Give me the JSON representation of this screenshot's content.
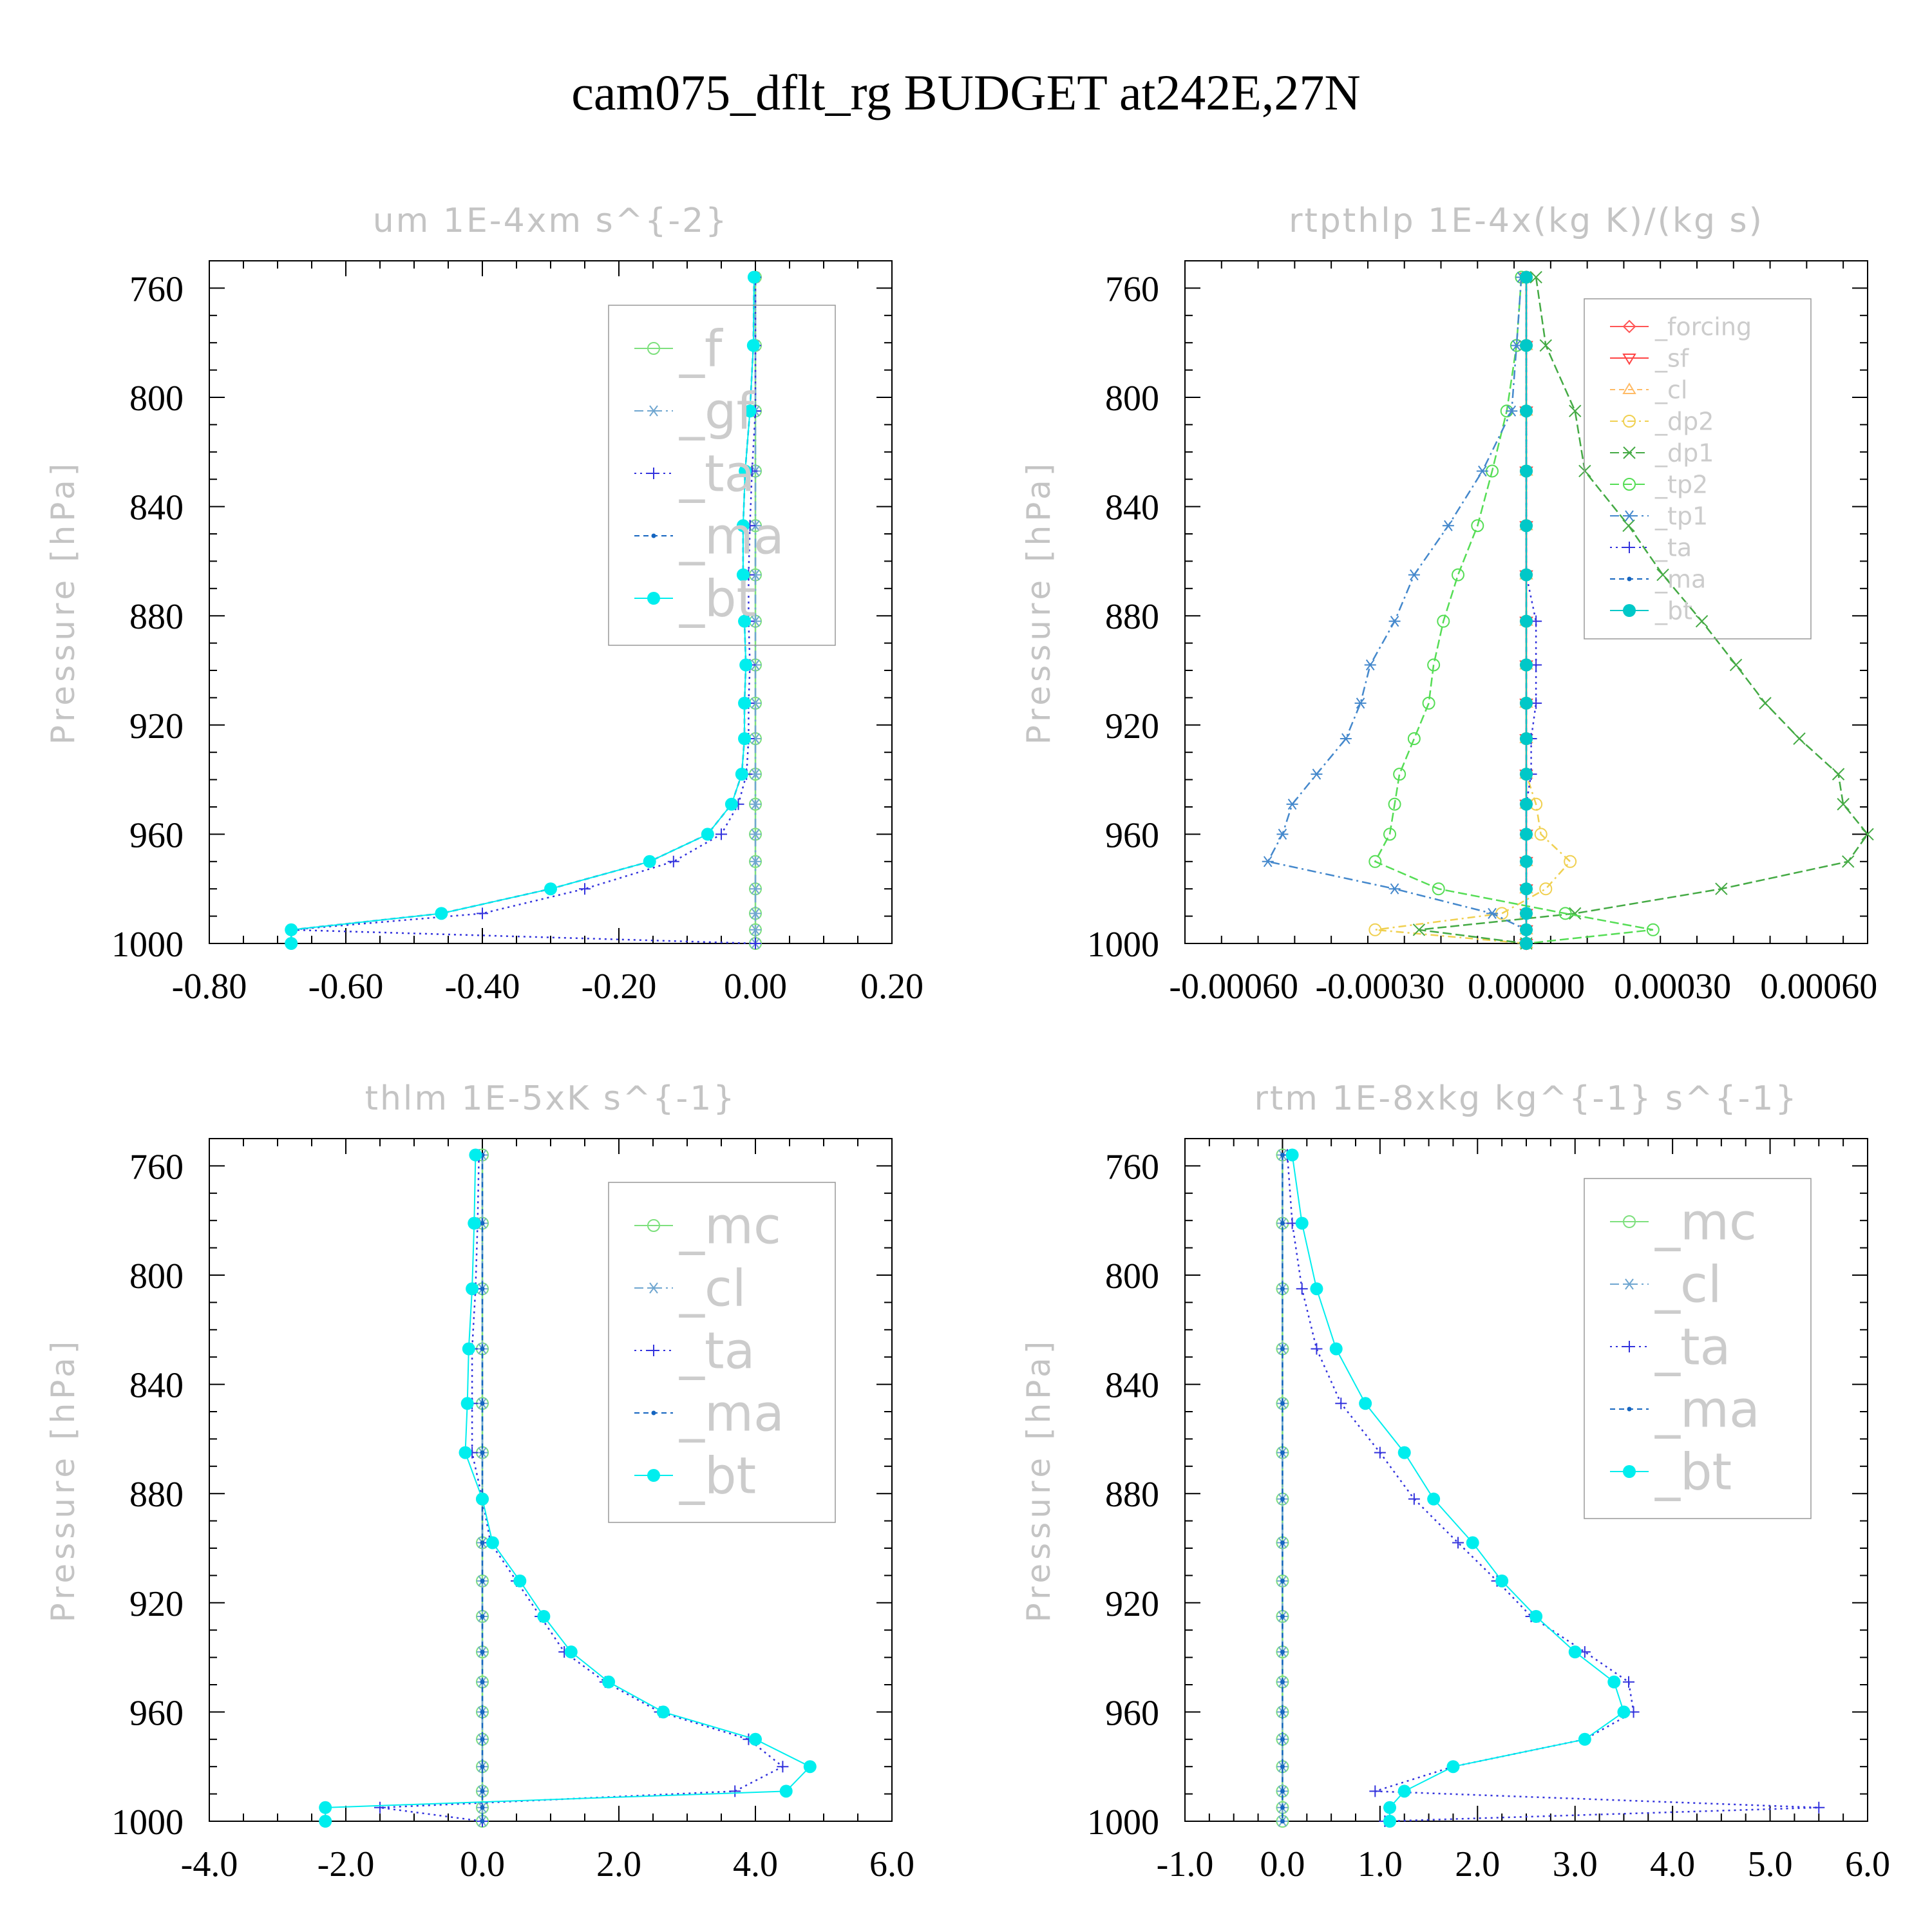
{
  "figure_title": "cam075_dflt_rg  BUDGET at242E,27N",
  "chart_data": [
    {
      "type": "line",
      "title": "um  1E-4xm s^{-2}",
      "ylabel": "Pressure [hPa]",
      "xlabel": "",
      "ylim": [
        1000,
        750
      ],
      "y_ticks": [
        760,
        800,
        840,
        880,
        920,
        960,
        1000
      ],
      "xlim": [
        -0.8,
        0.2
      ],
      "x_ticks": [
        -0.8,
        -0.6,
        -0.4,
        -0.2,
        0.0,
        0.2
      ],
      "x_tick_labels": [
        "-0.80",
        "-0.60",
        "-0.40",
        "-0.20",
        "0.00",
        "0.20"
      ],
      "zero_line": false,
      "legend_placement": "top-right",
      "legend_font": "large",
      "pressure": [
        756,
        781,
        805,
        827,
        847,
        865,
        882,
        898,
        912,
        925,
        938,
        949,
        960,
        970,
        980,
        989,
        995,
        1000
      ],
      "series": [
        {
          "name": "_f",
          "color": "#7ee07e",
          "marker": "circle",
          "dash": "",
          "values": [
            0.0,
            0.0,
            0.0,
            0.0,
            0.0,
            0.0,
            0.0,
            0.0,
            0.0,
            0.0,
            0.0,
            0.0,
            0.0,
            0.0,
            0.0,
            0.0,
            0.0,
            0.0
          ]
        },
        {
          "name": "_gf",
          "color": "#6fa6d0",
          "marker": "asterisk",
          "dash": "14 6 3 6",
          "values": [
            0.0,
            0.0,
            0.0,
            0.0,
            0.0,
            0.0,
            0.0,
            0.0,
            0.0,
            0.0,
            0.0,
            0.0,
            0.0,
            0.0,
            0.0,
            0.0,
            0.0,
            0.0
          ]
        },
        {
          "name": "_ta",
          "color": "#3333dd",
          "marker": "plus",
          "dash": "3 6",
          "values": [
            0.0,
            0.0,
            0.0,
            -0.005,
            -0.008,
            -0.01,
            -0.01,
            -0.008,
            -0.01,
            -0.01,
            -0.013,
            -0.025,
            -0.05,
            -0.12,
            -0.25,
            -0.4,
            -0.68,
            0.0
          ]
        },
        {
          "name": "_ma",
          "color": "#1565c0",
          "marker": "dot",
          "dash": "8 6",
          "values": [
            -0.002,
            -0.003,
            -0.008,
            -0.015,
            -0.018,
            -0.018,
            -0.016,
            -0.014,
            -0.016,
            -0.016,
            -0.02,
            -0.035,
            -0.07,
            -0.155,
            -0.3,
            -0.46,
            -0.68,
            -0.68
          ]
        },
        {
          "name": "_bt",
          "color": "#00eeee",
          "marker": "bigdot",
          "dash": "",
          "values": [
            -0.002,
            -0.003,
            -0.008,
            -0.015,
            -0.018,
            -0.018,
            -0.016,
            -0.014,
            -0.016,
            -0.016,
            -0.02,
            -0.035,
            -0.07,
            -0.155,
            -0.3,
            -0.46,
            -0.68,
            -0.68
          ]
        }
      ]
    },
    {
      "type": "line",
      "title": "rtpthlp  1E-4x(kg K)/(kg s)",
      "ylabel": "Pressure [hPa]",
      "xlabel": "",
      "ylim": [
        1000,
        750
      ],
      "y_ticks": [
        760,
        800,
        840,
        880,
        920,
        960,
        1000
      ],
      "xlim": [
        -0.0007,
        0.0007
      ],
      "x_ticks": [
        -0.0006,
        -0.0003,
        0.0,
        0.0003,
        0.0006
      ],
      "x_tick_labels": [
        "-0.00060",
        "-0.00030",
        "0.00000",
        "0.00030",
        "0.00060"
      ],
      "zero_line": false,
      "legend_placement": "top-right",
      "legend_font": "small",
      "pressure": [
        756,
        781,
        805,
        827,
        847,
        865,
        882,
        898,
        912,
        925,
        938,
        949,
        960,
        970,
        980,
        989,
        995,
        1000
      ],
      "series": [
        {
          "name": "_forcing",
          "color": "#ff5555",
          "marker": "diamond",
          "dash": "",
          "values": [
            0,
            0,
            0,
            0,
            0,
            0,
            0,
            0,
            0,
            0,
            0,
            0,
            0,
            0,
            0,
            0,
            0,
            0
          ]
        },
        {
          "name": "_sf",
          "color": "#ff4444",
          "marker": "tri-down",
          "dash": "",
          "values": [
            0,
            0,
            0,
            0,
            0,
            0,
            0,
            0,
            0,
            0,
            0,
            0,
            0,
            0,
            0,
            0,
            0,
            0
          ]
        },
        {
          "name": "_cl",
          "color": "#ffbb66",
          "marker": "tri-up",
          "dash": "8 6",
          "values": [
            0,
            0,
            0,
            0,
            0,
            0,
            0,
            0,
            0,
            0,
            0,
            0,
            0,
            0,
            0,
            0,
            0,
            0
          ]
        },
        {
          "name": "_dp2",
          "color": "#f0d050",
          "marker": "circle",
          "dash": "12 6 3 6",
          "values": [
            0,
            0,
            0,
            0,
            0,
            0,
            0,
            0,
            0,
            0,
            0,
            2e-05,
            3e-05,
            9e-05,
            4e-05,
            -5e-05,
            -0.00031,
            0
          ]
        },
        {
          "name": "_dp1",
          "color": "#44aa44",
          "marker": "x",
          "dash": "14 6",
          "values": [
            2e-05,
            4e-05,
            0.0001,
            0.00012,
            0.00021,
            0.00028,
            0.00036,
            0.00043,
            0.00049,
            0.00056,
            0.00064,
            0.00065,
            0.0007,
            0.00066,
            0.0004,
            0.0001,
            -0.00022,
            0
          ]
        },
        {
          "name": "_tp2",
          "color": "#55dd55",
          "marker": "circle",
          "dash": "14 6",
          "values": [
            -1e-05,
            -2e-05,
            -4e-05,
            -7e-05,
            -0.0001,
            -0.00014,
            -0.00017,
            -0.00019,
            -0.0002,
            -0.00023,
            -0.00026,
            -0.00027,
            -0.00028,
            -0.00031,
            -0.00018,
            8e-05,
            0.00026,
            0
          ]
        },
        {
          "name": "_tp1",
          "color": "#4488cc",
          "marker": "asterisk",
          "dash": "14 6 3 6",
          "values": [
            -1e-05,
            -2e-05,
            -3e-05,
            -9e-05,
            -0.00016,
            -0.00023,
            -0.00027,
            -0.00032,
            -0.00034,
            -0.00037,
            -0.00043,
            -0.00048,
            -0.0005,
            -0.00053,
            -0.00027,
            -7e-05,
            0,
            0
          ]
        },
        {
          "name": "_ta",
          "color": "#3333dd",
          "marker": "plus",
          "dash": "3 6",
          "values": [
            0,
            0,
            0,
            0,
            0,
            0,
            2e-05,
            2e-05,
            2e-05,
            1e-05,
            1e-05,
            0,
            0,
            0,
            0,
            0,
            0,
            0
          ]
        },
        {
          "name": "_ma",
          "color": "#1565c0",
          "marker": "dot",
          "dash": "8 6",
          "values": [
            0,
            0,
            0,
            0,
            0,
            0,
            0,
            0,
            0,
            0,
            0,
            0,
            0,
            0,
            0,
            0,
            0,
            0
          ]
        },
        {
          "name": "_bt",
          "color": "#00c8c8",
          "marker": "bigdot",
          "dash": "",
          "values": [
            0,
            0,
            0,
            0,
            0,
            0,
            0,
            0,
            0,
            0,
            0,
            0,
            0,
            0,
            0,
            0,
            0,
            0
          ]
        }
      ]
    },
    {
      "type": "line",
      "title": "thlm  1E-5xK s^{-1}",
      "ylabel": "Pressure [hPa]",
      "xlabel": "",
      "ylim": [
        1000,
        750
      ],
      "y_ticks": [
        760,
        800,
        840,
        880,
        920,
        960,
        1000
      ],
      "xlim": [
        -4.0,
        6.0
      ],
      "x_ticks": [
        -4.0,
        -2.0,
        0.0,
        2.0,
        4.0,
        6.0
      ],
      "x_tick_labels": [
        "-4.0",
        "-2.0",
        "0.0",
        "2.0",
        "4.0",
        "6.0"
      ],
      "zero_line": true,
      "legend_placement": "top-right",
      "legend_font": "large",
      "pressure": [
        756,
        781,
        805,
        827,
        847,
        865,
        882,
        898,
        912,
        925,
        938,
        949,
        960,
        970,
        980,
        989,
        995,
        1000
      ],
      "series": [
        {
          "name": "_mc",
          "color": "#7ee07e",
          "marker": "circle",
          "dash": "",
          "values": [
            0,
            0,
            0,
            0,
            0,
            0,
            0,
            0,
            0,
            0,
            0,
            0,
            0,
            0,
            0,
            0,
            0,
            0
          ]
        },
        {
          "name": "_cl",
          "color": "#6fa6d0",
          "marker": "asterisk",
          "dash": "14 6 3 6",
          "values": [
            0,
            0,
            0,
            0,
            0,
            0,
            0,
            0,
            0,
            0,
            0,
            0,
            0,
            0,
            0,
            0,
            0,
            0
          ]
        },
        {
          "name": "_ta",
          "color": "#3333dd",
          "marker": "plus",
          "dash": "3 6",
          "values": [
            -0.05,
            -0.07,
            -0.1,
            -0.15,
            -0.15,
            -0.15,
            0.0,
            0.12,
            0.5,
            0.85,
            1.2,
            1.8,
            2.6,
            3.9,
            4.4,
            3.7,
            -1.5,
            0.0
          ]
        },
        {
          "name": "_ma",
          "color": "#1565c0",
          "marker": "dot",
          "dash": "8 6",
          "values": [
            0,
            0,
            0,
            0,
            0,
            0,
            0,
            0,
            0,
            0,
            0,
            0,
            0,
            0,
            0,
            0,
            0,
            0
          ]
        },
        {
          "name": "_bt",
          "color": "#00eeee",
          "marker": "bigdot",
          "dash": "",
          "values": [
            -0.1,
            -0.12,
            -0.15,
            -0.2,
            -0.22,
            -0.25,
            0.0,
            0.15,
            0.55,
            0.9,
            1.3,
            1.85,
            2.65,
            4.0,
            4.8,
            4.45,
            -2.3,
            -2.3
          ]
        }
      ]
    },
    {
      "type": "line",
      "title": "rtm  1E-8xkg kg^{-1} s^{-1}",
      "ylabel": "Pressure [hPa]",
      "xlabel": "",
      "ylim": [
        1000,
        750
      ],
      "y_ticks": [
        760,
        800,
        840,
        880,
        920,
        960,
        1000
      ],
      "xlim": [
        -1.0,
        6.0
      ],
      "x_ticks": [
        -1.0,
        0.0,
        1.0,
        2.0,
        3.0,
        4.0,
        5.0,
        6.0
      ],
      "x_tick_labels": [
        "-1.0",
        "0.0",
        "1.0",
        "2.0",
        "3.0",
        "4.0",
        "5.0",
        "6.0"
      ],
      "zero_line": true,
      "legend_placement": "top-right",
      "legend_font": "large",
      "pressure": [
        756,
        781,
        805,
        827,
        847,
        865,
        882,
        898,
        912,
        925,
        938,
        949,
        960,
        970,
        980,
        989,
        995,
        1000
      ],
      "series": [
        {
          "name": "_mc",
          "color": "#7ee07e",
          "marker": "circle",
          "dash": "",
          "values": [
            0,
            0,
            0,
            0,
            0,
            0,
            0,
            0,
            0,
            0,
            0,
            0,
            0,
            0,
            0,
            0,
            0,
            0
          ]
        },
        {
          "name": "_cl",
          "color": "#6fa6d0",
          "marker": "asterisk",
          "dash": "14 6 3 6",
          "values": [
            0,
            0,
            0,
            0,
            0,
            0,
            0,
            0,
            0,
            0,
            0,
            0,
            0,
            0,
            0,
            0,
            0,
            0
          ]
        },
        {
          "name": "_ta",
          "color": "#3333dd",
          "marker": "plus",
          "dash": "3 6",
          "values": [
            0.05,
            0.1,
            0.2,
            0.35,
            0.6,
            1.0,
            1.35,
            1.8,
            2.2,
            2.55,
            3.1,
            3.55,
            3.6,
            3.1,
            1.75,
            0.95,
            5.5,
            1.05
          ]
        },
        {
          "name": "_ma",
          "color": "#1565c0",
          "marker": "dot",
          "dash": "8 6",
          "values": [
            0,
            0,
            0,
            0,
            0,
            0,
            0,
            0,
            0,
            0,
            0,
            0,
            0,
            0,
            0,
            0,
            0,
            0
          ]
        },
        {
          "name": "_bt",
          "color": "#00eeee",
          "marker": "bigdot",
          "dash": "",
          "values": [
            0.1,
            0.2,
            0.35,
            0.55,
            0.85,
            1.25,
            1.55,
            1.95,
            2.25,
            2.6,
            3.0,
            3.4,
            3.5,
            3.1,
            1.75,
            1.25,
            1.1,
            1.1
          ]
        }
      ]
    }
  ]
}
